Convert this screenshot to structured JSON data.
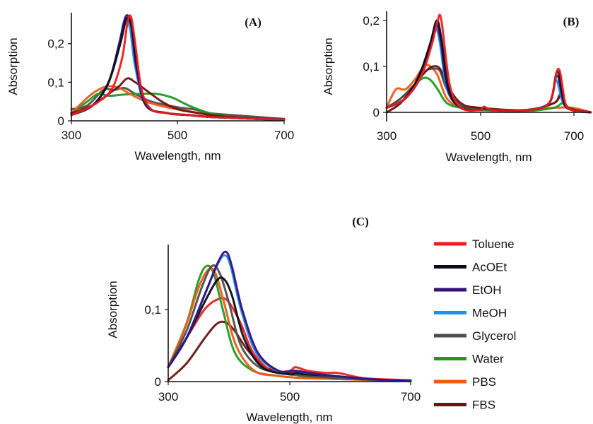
{
  "colors": {
    "Toluene": "#ee1c1c",
    "AcOEt": "#0d0d1a",
    "EtOH": "#33117a",
    "MeOH": "#1e90ee",
    "Glycerol": "#4d4d4d",
    "Water": "#1e9a22",
    "PBS": "#ee5a14",
    "FBS": "#6b1410"
  },
  "legend": {
    "placement": "bottom-right",
    "items": [
      "Toluene",
      "AcOEt",
      "EtOH",
      "MeOH",
      "Glycerol",
      "Water",
      "PBS",
      "FBS"
    ]
  },
  "chart_data": [
    {
      "panel": "(A)",
      "type": "line",
      "xlabel": "Wavelength, nm",
      "ylabel": "Absorption",
      "xlim": [
        300,
        700
      ],
      "ylim": [
        0,
        0.28
      ],
      "xticks": [
        "300",
        "500",
        "700"
      ],
      "yticks": [
        {
          "v": 0,
          "label": "0"
        },
        {
          "v": 0.1,
          "label": "0,1"
        },
        {
          "v": 0.2,
          "label": "0,2"
        }
      ],
      "series": [
        {
          "name": "Glycerol",
          "x": [
            300,
            330,
            360,
            380,
            400,
            420,
            450,
            500,
            530,
            560,
            600,
            650,
            700
          ],
          "y": [
            0.03,
            0.04,
            0.08,
            0.08,
            0.085,
            0.07,
            0.05,
            0.035,
            0.03,
            0.02,
            0.015,
            0.01,
            0.005
          ]
        },
        {
          "name": "Water",
          "x": [
            300,
            330,
            350,
            370,
            400,
            430,
            460,
            490,
            520,
            560,
            600,
            650,
            700
          ],
          "y": [
            0.02,
            0.05,
            0.07,
            0.065,
            0.068,
            0.07,
            0.07,
            0.06,
            0.04,
            0.02,
            0.01,
            0.005,
            0.003
          ]
        },
        {
          "name": "PBS",
          "x": [
            300,
            330,
            350,
            370,
            390,
            410,
            440,
            480,
            520,
            560,
            600,
            650,
            700
          ],
          "y": [
            0.02,
            0.06,
            0.08,
            0.09,
            0.085,
            0.07,
            0.05,
            0.035,
            0.025,
            0.015,
            0.01,
            0.005,
            0.003
          ]
        },
        {
          "name": "FBS",
          "x": [
            300,
            340,
            370,
            390,
            405,
            420,
            440,
            470,
            500,
            540,
            580,
            620,
            660,
            700
          ],
          "y": [
            0.02,
            0.04,
            0.07,
            0.09,
            0.11,
            0.1,
            0.08,
            0.05,
            0.03,
            0.02,
            0.012,
            0.008,
            0.005,
            0.003
          ]
        },
        {
          "name": "MeOH",
          "x": [
            300,
            340,
            370,
            390,
            400,
            410,
            420,
            440,
            480,
            520,
            560,
            600,
            650,
            700
          ],
          "y": [
            0.015,
            0.04,
            0.1,
            0.2,
            0.26,
            0.24,
            0.14,
            0.04,
            0.02,
            0.015,
            0.01,
            0.008,
            0.005,
            0.003
          ]
        },
        {
          "name": "EtOH",
          "x": [
            300,
            340,
            370,
            390,
            402,
            412,
            422,
            440,
            480,
            520,
            560,
            600,
            650,
            700
          ],
          "y": [
            0.015,
            0.04,
            0.1,
            0.2,
            0.27,
            0.25,
            0.14,
            0.04,
            0.02,
            0.015,
            0.01,
            0.008,
            0.005,
            0.003
          ]
        },
        {
          "name": "AcOEt",
          "x": [
            300,
            340,
            370,
            392,
            404,
            414,
            424,
            442,
            480,
            520,
            560,
            600,
            650,
            700
          ],
          "y": [
            0.015,
            0.04,
            0.1,
            0.2,
            0.265,
            0.24,
            0.14,
            0.04,
            0.02,
            0.015,
            0.01,
            0.008,
            0.005,
            0.003
          ]
        },
        {
          "name": "Toluene",
          "x": [
            300,
            340,
            375,
            395,
            405,
            412,
            420,
            432,
            450,
            480,
            520,
            560,
            600,
            650,
            700
          ],
          "y": [
            0.015,
            0.04,
            0.08,
            0.16,
            0.25,
            0.27,
            0.2,
            0.08,
            0.03,
            0.02,
            0.015,
            0.01,
            0.008,
            0.005,
            0.003
          ]
        }
      ]
    },
    {
      "panel": "(B)",
      "type": "line",
      "xlabel": "Wavelength, nm",
      "ylabel": "Absorption",
      "xlim": [
        300,
        740
      ],
      "ylim": [
        -0.02,
        0.22
      ],
      "xticks": [
        "300",
        "500",
        "700"
      ],
      "yticks": [
        {
          "v": 0,
          "label": "0"
        },
        {
          "v": 0.1,
          "label": "0,1"
        },
        {
          "v": 0.2,
          "label": "0,2"
        }
      ],
      "series": [
        {
          "name": "PBS",
          "x": [
            300,
            320,
            340,
            360,
            380,
            395,
            410,
            430,
            460,
            500,
            600,
            660,
            700,
            740
          ],
          "y": [
            0.01,
            0.05,
            0.05,
            0.07,
            0.1,
            0.1,
            0.08,
            0.03,
            0.01,
            0.005,
            0.005,
            0.01,
            0.01,
            0.0
          ]
        },
        {
          "name": "Water",
          "x": [
            300,
            330,
            360,
            380,
            395,
            410,
            430,
            460,
            500,
            600,
            660,
            680,
            700,
            740
          ],
          "y": [
            0.01,
            0.03,
            0.06,
            0.075,
            0.07,
            0.05,
            0.02,
            0.01,
            0.005,
            0.003,
            0.01,
            0.02,
            0.005,
            0.0
          ]
        },
        {
          "name": "Glycerol",
          "x": [
            300,
            330,
            360,
            385,
            400,
            415,
            430,
            460,
            500,
            600,
            660,
            675,
            690,
            740
          ],
          "y": [
            0.01,
            0.03,
            0.06,
            0.09,
            0.095,
            0.09,
            0.05,
            0.015,
            0.008,
            0.005,
            0.02,
            0.04,
            0.01,
            0.0
          ]
        },
        {
          "name": "FBS",
          "x": [
            300,
            330,
            360,
            385,
            400,
            415,
            430,
            460,
            500,
            600,
            660,
            675,
            690,
            740
          ],
          "y": [
            0.0,
            0.02,
            0.06,
            0.09,
            0.1,
            0.095,
            0.06,
            0.02,
            0.01,
            0.005,
            0.02,
            0.035,
            0.01,
            0.0
          ]
        },
        {
          "name": "MeOH",
          "x": [
            300,
            340,
            370,
            390,
            405,
            415,
            430,
            460,
            500,
            510,
            530,
            600,
            650,
            665,
            680,
            700,
            740
          ],
          "y": [
            0.01,
            0.03,
            0.07,
            0.13,
            0.18,
            0.15,
            0.05,
            0.01,
            0.005,
            0.01,
            0.005,
            0.005,
            0.02,
            0.07,
            0.02,
            0.005,
            0.0
          ]
        },
        {
          "name": "EtOH",
          "x": [
            300,
            340,
            370,
            392,
            406,
            416,
            432,
            460,
            500,
            510,
            530,
            600,
            650,
            667,
            682,
            700,
            740
          ],
          "y": [
            0.01,
            0.03,
            0.08,
            0.14,
            0.19,
            0.16,
            0.05,
            0.01,
            0.005,
            0.012,
            0.005,
            0.005,
            0.02,
            0.08,
            0.02,
            0.005,
            0.0
          ]
        },
        {
          "name": "AcOEt",
          "x": [
            300,
            340,
            370,
            394,
            408,
            418,
            434,
            460,
            500,
            510,
            530,
            600,
            650,
            668,
            683,
            700,
            740
          ],
          "y": [
            0.01,
            0.03,
            0.08,
            0.15,
            0.2,
            0.16,
            0.05,
            0.01,
            0.005,
            0.01,
            0.005,
            0.005,
            0.02,
            0.09,
            0.02,
            0.005,
            0.0
          ]
        },
        {
          "name": "Toluene",
          "x": [
            300,
            340,
            375,
            398,
            410,
            418,
            436,
            460,
            500,
            510,
            530,
            600,
            650,
            670,
            685,
            700,
            740
          ],
          "y": [
            0.01,
            0.03,
            0.08,
            0.15,
            0.2,
            0.2,
            0.06,
            0.01,
            0.005,
            0.012,
            0.005,
            0.005,
            0.02,
            0.095,
            0.02,
            0.005,
            0.0
          ]
        }
      ]
    },
    {
      "panel": "(C)",
      "type": "line",
      "xlabel": "Wavelength, nm",
      "ylabel": "Absorption",
      "xlim": [
        300,
        700
      ],
      "ylim": [
        0,
        0.19
      ],
      "xticks": [
        "300",
        "500",
        "700"
      ],
      "yticks": [
        {
          "v": 0,
          "label": "0"
        },
        {
          "v": 0.1,
          "label": "0,1"
        }
      ],
      "series": [
        {
          "name": "FBS",
          "x": [
            300,
            330,
            360,
            380,
            395,
            410,
            430,
            460,
            500,
            540,
            580,
            620,
            660,
            700
          ],
          "y": [
            0.002,
            0.025,
            0.06,
            0.08,
            0.082,
            0.07,
            0.045,
            0.02,
            0.012,
            0.008,
            0.005,
            0.003,
            0.002,
            0.001
          ]
        },
        {
          "name": "Toluene",
          "x": [
            300,
            330,
            360,
            385,
            400,
            420,
            440,
            470,
            500,
            510,
            530,
            560,
            580,
            620,
            660,
            700
          ],
          "y": [
            0.02,
            0.06,
            0.1,
            0.115,
            0.11,
            0.08,
            0.04,
            0.015,
            0.015,
            0.02,
            0.015,
            0.012,
            0.012,
            0.005,
            0.003,
            0.002
          ]
        },
        {
          "name": "Water",
          "x": [
            300,
            330,
            350,
            363,
            375,
            390,
            410,
            440,
            480,
            520,
            560,
            600,
            650,
            700
          ],
          "y": [
            0.02,
            0.08,
            0.14,
            0.16,
            0.15,
            0.1,
            0.04,
            0.015,
            0.008,
            0.005,
            0.004,
            0.003,
            0.002,
            0.001
          ]
        },
        {
          "name": "PBS",
          "x": [
            300,
            330,
            350,
            366,
            378,
            392,
            412,
            442,
            480,
            520,
            560,
            600,
            650,
            700
          ],
          "y": [
            0.02,
            0.08,
            0.13,
            0.155,
            0.15,
            0.11,
            0.05,
            0.015,
            0.008,
            0.005,
            0.004,
            0.003,
            0.002,
            0.001
          ]
        },
        {
          "name": "Glycerol",
          "x": [
            300,
            330,
            355,
            372,
            385,
            400,
            420,
            450,
            490,
            520,
            560,
            600,
            650,
            700
          ],
          "y": [
            0.02,
            0.07,
            0.13,
            0.16,
            0.15,
            0.11,
            0.05,
            0.02,
            0.012,
            0.008,
            0.006,
            0.004,
            0.002,
            0.001
          ]
        },
        {
          "name": "AcOEt",
          "x": [
            300,
            330,
            360,
            380,
            392,
            405,
            425,
            455,
            500,
            510,
            530,
            570,
            620,
            660,
            700
          ],
          "y": [
            0.02,
            0.06,
            0.11,
            0.14,
            0.142,
            0.12,
            0.06,
            0.02,
            0.01,
            0.012,
            0.01,
            0.008,
            0.004,
            0.002,
            0.001
          ]
        },
        {
          "name": "MeOH",
          "x": [
            300,
            330,
            360,
            380,
            393,
            403,
            420,
            445,
            480,
            510,
            530,
            570,
            620,
            660,
            700
          ],
          "y": [
            0.02,
            0.06,
            0.12,
            0.16,
            0.175,
            0.16,
            0.1,
            0.04,
            0.015,
            0.015,
            0.012,
            0.008,
            0.004,
            0.002,
            0.001
          ]
        },
        {
          "name": "EtOH",
          "x": [
            300,
            330,
            360,
            382,
            395,
            405,
            422,
            448,
            482,
            512,
            532,
            572,
            622,
            662,
            700
          ],
          "y": [
            0.02,
            0.06,
            0.12,
            0.165,
            0.18,
            0.16,
            0.1,
            0.04,
            0.015,
            0.015,
            0.012,
            0.008,
            0.004,
            0.002,
            0.001
          ]
        }
      ]
    }
  ]
}
